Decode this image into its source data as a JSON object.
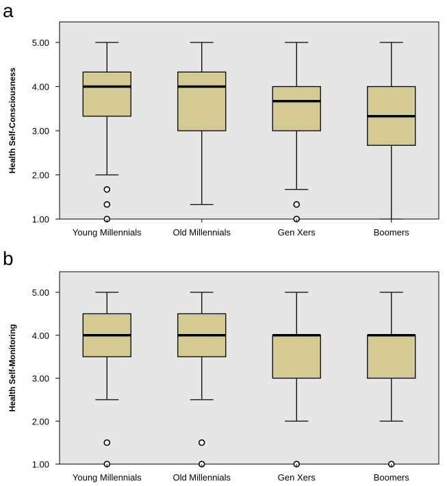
{
  "chart_data": [
    {
      "type": "boxplot",
      "panel_label": "a",
      "ylabel": "Health Self-Consciousness",
      "xlabel": "",
      "ylim": [
        1.0,
        5.0
      ],
      "yticks": [
        "1.00",
        "2.00",
        "3.00",
        "4.00",
        "5.00"
      ],
      "categories": [
        "Young Millennials",
        "Old Millennials",
        "Gen Xers",
        "Boomers"
      ],
      "boxes": [
        {
          "whisker_low": 2.0,
          "q1": 3.33,
          "median": 4.0,
          "q3": 4.33,
          "whisker_high": 5.0,
          "outliers": [
            1.67,
            1.33,
            1.0
          ]
        },
        {
          "whisker_low": 1.33,
          "q1": 3.0,
          "median": 4.0,
          "q3": 4.33,
          "whisker_high": 5.0,
          "outliers": []
        },
        {
          "whisker_low": 1.67,
          "q1": 3.0,
          "median": 3.67,
          "q3": 4.0,
          "whisker_high": 5.0,
          "outliers": [
            1.33,
            1.0
          ]
        },
        {
          "whisker_low": 1.0,
          "q1": 2.67,
          "median": 3.33,
          "q3": 4.0,
          "whisker_high": 5.0,
          "outliers": []
        }
      ],
      "grid": false
    },
    {
      "type": "boxplot",
      "panel_label": "b",
      "ylabel": "Health Self-Monitoring",
      "xlabel": "",
      "ylim": [
        1.0,
        5.0
      ],
      "yticks": [
        "1.00",
        "2.00",
        "3.00",
        "4.00",
        "5.00"
      ],
      "categories": [
        "Young Millennials",
        "Old Millennials",
        "Gen Xers",
        "Boomers"
      ],
      "boxes": [
        {
          "whisker_low": 2.5,
          "q1": 3.5,
          "median": 4.0,
          "q3": 4.5,
          "whisker_high": 5.0,
          "outliers": [
            1.5,
            1.0
          ]
        },
        {
          "whisker_low": 2.5,
          "q1": 3.5,
          "median": 4.0,
          "q3": 4.5,
          "whisker_high": 5.0,
          "outliers": [
            1.5,
            1.0
          ]
        },
        {
          "whisker_low": 2.0,
          "q1": 3.0,
          "median": 4.0,
          "q3": 4.0,
          "whisker_high": 5.0,
          "outliers": [
            1.0
          ]
        },
        {
          "whisker_low": 2.0,
          "q1": 3.0,
          "median": 4.0,
          "q3": 4.0,
          "whisker_high": 5.0,
          "outliers": [
            1.0
          ]
        }
      ],
      "grid": false
    }
  ],
  "colors": {
    "plot_background": "#e6e6e6",
    "box_fill": "#d4ca94",
    "stroke": "#000000"
  }
}
